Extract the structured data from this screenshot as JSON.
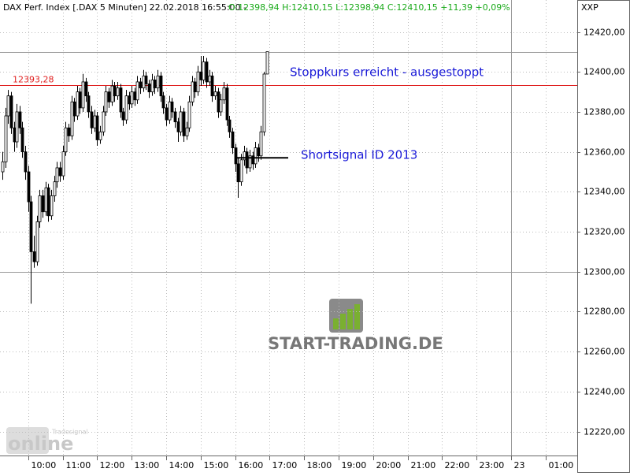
{
  "chart_data": {
    "type": "candlestick",
    "title": "DAX Perf. Index [.DAX  5 Minuten] 22.02.2018 16:55:00 -",
    "quote": "O:12398,94 H:12410,15 L:12398,94 C:12410,15 +11,39 +0,09%",
    "axis_title": "XXP",
    "watermark": "START-TRADING.DE",
    "logo": "online",
    "logo_small": "Tradesignal",
    "annotations": [
      {
        "text": "Stoppkurs erreicht - ausgestoppt",
        "color": "#1a1ad8"
      },
      {
        "text": "Shortsignal ID 2013",
        "color": "#1a1ad8"
      }
    ],
    "stop_line": {
      "value": 12393.28,
      "label": "12393,28",
      "color": "#e02020"
    },
    "short_level": 12357,
    "round_line": 12300,
    "ylim": [
      12208,
      12436
    ],
    "yticks": [
      {
        "value": 12220,
        "label": "12220,00"
      },
      {
        "value": 12240,
        "label": "12240,00"
      },
      {
        "value": 12260,
        "label": "12260,00"
      },
      {
        "value": 12280,
        "label": "12280,00"
      },
      {
        "value": 12300,
        "label": "12300,00"
      },
      {
        "value": 12320,
        "label": "12320,00"
      },
      {
        "value": 12340,
        "label": "12340,00"
      },
      {
        "value": 12360,
        "label": "12360,00"
      },
      {
        "value": 12380,
        "label": "12380,00"
      },
      {
        "value": 12400,
        "label": "12400,00"
      },
      {
        "value": 12420,
        "label": "12420,00"
      }
    ],
    "xlim": [
      "09:11",
      "25:55"
    ],
    "xticks": [
      {
        "value": "10:00",
        "label": "10:00"
      },
      {
        "value": "11:00",
        "label": "11:00"
      },
      {
        "value": "12:00",
        "label": "12:00"
      },
      {
        "value": "13:00",
        "label": "13:00"
      },
      {
        "value": "14:00",
        "label": "14:00"
      },
      {
        "value": "15:00",
        "label": "15:00"
      },
      {
        "value": "16:00",
        "label": "16:00"
      },
      {
        "value": "17:00",
        "label": "17:00"
      },
      {
        "value": "18:00",
        "label": "18:00"
      },
      {
        "value": "19:00",
        "label": "19:00"
      },
      {
        "value": "20:00",
        "label": "20:00"
      },
      {
        "value": "21:00",
        "label": "21:00"
      },
      {
        "value": "22:00",
        "label": "22:00"
      },
      {
        "value": "23:00",
        "label": "23:00"
      },
      {
        "value": "24:00",
        "label": "23"
      },
      {
        "value": "25:00",
        "label": "01:00"
      }
    ],
    "day_break": "24:00",
    "grid": true,
    "x": [
      "09:15",
      "09:20",
      "09:25",
      "09:30",
      "09:35",
      "09:40",
      "09:45",
      "09:50",
      "09:55",
      "10:00",
      "10:05",
      "10:10",
      "10:15",
      "10:20",
      "10:25",
      "10:30",
      "10:35",
      "10:40",
      "10:45",
      "10:50",
      "10:55",
      "11:00",
      "11:05",
      "11:10",
      "11:15",
      "11:20",
      "11:25",
      "11:30",
      "11:35",
      "11:40",
      "11:45",
      "11:50",
      "11:55",
      "12:00",
      "12:05",
      "12:10",
      "12:15",
      "12:20",
      "12:25",
      "12:30",
      "12:35",
      "12:40",
      "12:45",
      "12:50",
      "12:55",
      "13:00",
      "13:05",
      "13:10",
      "13:15",
      "13:20",
      "13:25",
      "13:30",
      "13:35",
      "13:40",
      "13:45",
      "13:50",
      "13:55",
      "14:00",
      "14:05",
      "14:10",
      "14:15",
      "14:20",
      "14:25",
      "14:30",
      "14:35",
      "14:40",
      "14:45",
      "14:50",
      "14:55",
      "15:00",
      "15:05",
      "15:10",
      "15:15",
      "15:20",
      "15:25",
      "15:30",
      "15:35",
      "15:40",
      "15:45",
      "15:50",
      "15:55",
      "16:00",
      "16:05",
      "16:10",
      "16:15",
      "16:20",
      "16:25",
      "16:30",
      "16:35",
      "16:40",
      "16:45",
      "16:50",
      "16:55"
    ],
    "candles": [
      [
        12350,
        12360,
        12346,
        12355
      ],
      [
        12355,
        12382,
        12352,
        12378
      ],
      [
        12378,
        12391,
        12374,
        12388
      ],
      [
        12388,
        12390,
        12369,
        12372
      ],
      [
        12372,
        12375,
        12360,
        12365
      ],
      [
        12365,
        12384,
        12362,
        12380
      ],
      [
        12380,
        12383,
        12369,
        12372
      ],
      [
        12372,
        12375,
        12357,
        12360
      ],
      [
        12360,
        12363,
        12346,
        12350
      ],
      [
        12350,
        12353,
        12330,
        12335
      ],
      [
        12335,
        12338,
        12284,
        12310
      ],
      [
        12310,
        12318,
        12302,
        12305
      ],
      [
        12305,
        12328,
        12303,
        12325
      ],
      [
        12325,
        12341,
        12322,
        12338
      ],
      [
        12338,
        12341,
        12327,
        12330
      ],
      [
        12330,
        12345,
        12328,
        12342
      ],
      [
        12342,
        12344,
        12325,
        12328
      ],
      [
        12328,
        12341,
        12326,
        12338
      ],
      [
        12338,
        12348,
        12335,
        12345
      ],
      [
        12345,
        12355,
        12342,
        12352
      ],
      [
        12352,
        12355,
        12345,
        12348
      ],
      [
        12348,
        12363,
        12346,
        12360
      ],
      [
        12360,
        12375,
        12358,
        12372
      ],
      [
        12372,
        12374,
        12365,
        12368
      ],
      [
        12368,
        12388,
        12366,
        12385
      ],
      [
        12385,
        12387,
        12375,
        12378
      ],
      [
        12378,
        12393,
        12376,
        12390
      ],
      [
        12390,
        12392,
        12379,
        12382
      ],
      [
        12382,
        12399,
        12380,
        12395
      ],
      [
        12395,
        12397,
        12385,
        12388
      ],
      [
        12388,
        12390,
        12377,
        12380
      ],
      [
        12380,
        12383,
        12369,
        12372
      ],
      [
        12372,
        12381,
        12370,
        12378
      ],
      [
        12378,
        12380,
        12363,
        12366
      ],
      [
        12366,
        12373,
        12364,
        12370
      ],
      [
        12370,
        12383,
        12368,
        12380
      ],
      [
        12380,
        12393,
        12378,
        12390
      ],
      [
        12390,
        12392,
        12382,
        12385
      ],
      [
        12385,
        12396,
        12383,
        12393
      ],
      [
        12393,
        12395,
        12385,
        12388
      ],
      [
        12388,
        12395,
        12386,
        12392
      ],
      [
        12392,
        12394,
        12377,
        12380
      ],
      [
        12380,
        12382,
        12373,
        12376
      ],
      [
        12376,
        12391,
        12374,
        12388
      ],
      [
        12388,
        12390,
        12381,
        12384
      ],
      [
        12384,
        12393,
        12382,
        12390
      ],
      [
        12390,
        12392,
        12383,
        12386
      ],
      [
        12386,
        12398,
        12384,
        12395
      ],
      [
        12395,
        12397,
        12389,
        12392
      ],
      [
        12392,
        12401,
        12390,
        12398
      ],
      [
        12398,
        12400,
        12391,
        12394
      ],
      [
        12394,
        12396,
        12387,
        12390
      ],
      [
        12390,
        12399,
        12388,
        12396
      ],
      [
        12396,
        12398,
        12389,
        12392
      ],
      [
        12392,
        12401,
        12390,
        12398
      ],
      [
        12398,
        12400,
        12385,
        12388
      ],
      [
        12388,
        12390,
        12379,
        12382
      ],
      [
        12382,
        12384,
        12373,
        12376
      ],
      [
        12376,
        12388,
        12374,
        12385
      ],
      [
        12385,
        12387,
        12377,
        12380
      ],
      [
        12380,
        12382,
        12372,
        12375
      ],
      [
        12375,
        12377,
        12365,
        12370
      ],
      [
        12370,
        12383,
        12368,
        12380
      ],
      [
        12380,
        12382,
        12365,
        12368
      ],
      [
        12368,
        12375,
        12366,
        12372
      ],
      [
        12372,
        12388,
        12370,
        12385
      ],
      [
        12385,
        12398,
        12383,
        12395
      ],
      [
        12395,
        12397,
        12387,
        12390
      ],
      [
        12390,
        12403,
        12388,
        12400
      ],
      [
        12400,
        12408,
        12393,
        12396
      ],
      [
        12396,
        12408,
        12394,
        12405
      ],
      [
        12405,
        12407,
        12392,
        12395
      ],
      [
        12395,
        12401,
        12393,
        12398
      ],
      [
        12398,
        12400,
        12385,
        12388
      ],
      [
        12388,
        12393,
        12386,
        12390
      ],
      [
        12390,
        12392,
        12377,
        12380
      ],
      [
        12380,
        12389,
        12378,
        12386
      ],
      [
        12386,
        12395,
        12384,
        12392
      ],
      [
        12392,
        12394,
        12373,
        12376
      ],
      [
        12376,
        12378,
        12367,
        12370
      ],
      [
        12370,
        12372,
        12359,
        12362
      ],
      [
        12362,
        12364,
        12350,
        12354
      ],
      [
        12354,
        12357,
        12337,
        12345
      ],
      [
        12345,
        12359,
        12343,
        12356
      ],
      [
        12356,
        12363,
        12353,
        12360
      ],
      [
        12360,
        12362,
        12349,
        12352
      ],
      [
        12352,
        12361,
        12350,
        12358
      ],
      [
        12358,
        12360,
        12351,
        12354
      ],
      [
        12354,
        12365,
        12352,
        12362
      ],
      [
        12362,
        12364,
        12355,
        12358
      ],
      [
        12358,
        12373,
        12356,
        12370
      ],
      [
        12370,
        12400,
        12368,
        12398.94
      ],
      [
        12398.94,
        12410.15,
        12398.94,
        12410.15
      ]
    ]
  }
}
